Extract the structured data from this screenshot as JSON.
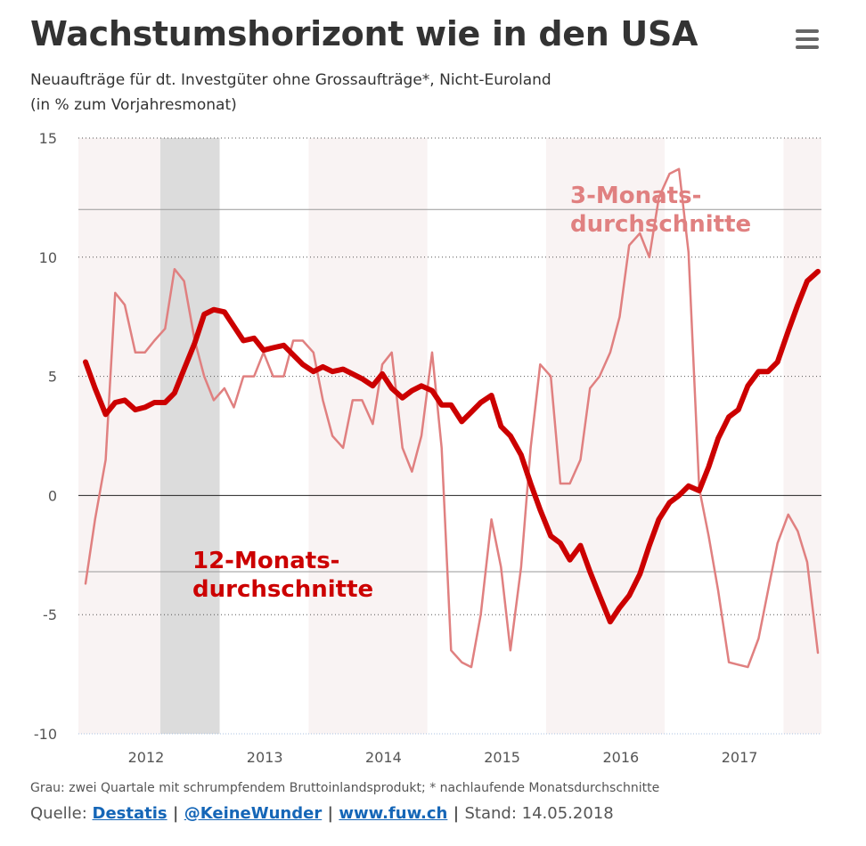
{
  "header": {
    "title": "Wachstumshorizont wie in den USA",
    "subtitle_line1": "Neuaufträge für dt. Investgüter ohne Grossaufträge*, Nicht-Euroland",
    "subtitle_line2": "(in % zum Vorjahresmonat)"
  },
  "menu": {
    "icon": "hamburger-menu-icon"
  },
  "footer": {
    "note": "Grau: zwei Quartale mit schrumpfendem Bruttoinlandsprodukt; * nachlaufende Monatsdurchschnitte",
    "source_prefix": "Quelle: ",
    "links": [
      "Destatis",
      "@KeineWunder",
      "www.fuw.ch"
    ],
    "separator": " | ",
    "stand": "Stand: 14.05.2018"
  },
  "colors": {
    "series_12m": "#cc0000",
    "series_3m": "#e08080",
    "recession_band": "#dcdcdc",
    "alt_band": "#f9f3f3",
    "link": "#1566b7"
  },
  "chart_data": {
    "type": "line",
    "ylim": [
      -10,
      15
    ],
    "yticks": [
      -10,
      -5,
      0,
      5,
      10,
      15
    ],
    "xlim": [
      2011.44,
      2017.7
    ],
    "xticks": [
      2012,
      2013,
      2014,
      2015,
      2016,
      2017
    ],
    "grid": "dotted",
    "reference_lines": [
      12,
      0,
      -3.2
    ],
    "recession_shading": [
      [
        2012.13,
        2012.63
      ]
    ],
    "alternating_year_bands": [
      [
        2011.44,
        2012.13
      ],
      [
        2013.38,
        2014.38
      ],
      [
        2015.38,
        2016.38
      ],
      [
        2017.38,
        2017.7
      ]
    ],
    "annotations": [
      {
        "text_line1": "3-Monats-",
        "text_line2": "durchschnitte",
        "series": "3m"
      },
      {
        "text_line1": "12-Monats-",
        "text_line2": "durchschnitte",
        "series": "12m"
      }
    ],
    "series": [
      {
        "key": "12m",
        "x": [
          2011.5,
          2011.58,
          2011.67,
          2011.75,
          2011.83,
          2011.92,
          2012.0,
          2012.08,
          2012.17,
          2012.25,
          2012.33,
          2012.42,
          2012.5,
          2012.58,
          2012.67,
          2012.75,
          2012.83,
          2012.92,
          2013.0,
          2013.08,
          2013.17,
          2013.25,
          2013.33,
          2013.42,
          2013.5,
          2013.58,
          2013.67,
          2013.75,
          2013.83,
          2013.92,
          2014.0,
          2014.08,
          2014.17,
          2014.25,
          2014.33,
          2014.42,
          2014.5,
          2014.58,
          2014.67,
          2014.75,
          2014.83,
          2014.92,
          2015.0,
          2015.08,
          2015.17,
          2015.25,
          2015.33,
          2015.42,
          2015.5,
          2015.58,
          2015.67,
          2015.75,
          2015.83,
          2015.92,
          2016.0,
          2016.08,
          2016.17,
          2016.25,
          2016.33,
          2016.42,
          2016.5,
          2016.58,
          2016.67,
          2016.75,
          2016.83,
          2016.92,
          2017.0,
          2017.08,
          2017.17,
          2017.25,
          2017.33,
          2017.42,
          2017.5,
          2017.58,
          2017.67
        ],
        "values": [
          5.6,
          4.5,
          3.4,
          3.9,
          4.0,
          3.6,
          3.7,
          3.9,
          3.9,
          4.3,
          5.3,
          6.4,
          7.6,
          7.8,
          7.7,
          7.1,
          6.5,
          6.6,
          6.1,
          6.2,
          6.3,
          5.9,
          5.5,
          5.2,
          5.4,
          5.2,
          5.3,
          5.1,
          4.9,
          4.6,
          5.1,
          4.5,
          4.1,
          4.4,
          4.6,
          4.4,
          3.8,
          3.8,
          3.1,
          3.5,
          3.9,
          4.2,
          2.9,
          2.5,
          1.7,
          0.5,
          -0.6,
          -1.7,
          -2.0,
          -2.7,
          -2.1,
          -3.2,
          -4.2,
          -5.3,
          -4.7,
          -4.2,
          -3.3,
          -2.1,
          -1.0,
          -0.3,
          0.0,
          0.4,
          0.2,
          1.2,
          2.4,
          3.3,
          3.6,
          4.6,
          5.2,
          5.2,
          5.6,
          6.9,
          8.0,
          9.0,
          9.4
        ]
      },
      {
        "key": "3m",
        "x": [
          2011.5,
          2011.58,
          2011.67,
          2011.75,
          2011.83,
          2011.92,
          2012.0,
          2012.08,
          2012.17,
          2012.25,
          2012.33,
          2012.42,
          2012.5,
          2012.58,
          2012.67,
          2012.75,
          2012.83,
          2012.92,
          2013.0,
          2013.08,
          2013.17,
          2013.25,
          2013.33,
          2013.42,
          2013.5,
          2013.58,
          2013.67,
          2013.75,
          2013.83,
          2013.92,
          2014.0,
          2014.08,
          2014.17,
          2014.25,
          2014.33,
          2014.42,
          2014.5,
          2014.58,
          2014.67,
          2014.75,
          2014.83,
          2014.92,
          2015.0,
          2015.08,
          2015.17,
          2015.25,
          2015.33,
          2015.42,
          2015.5,
          2015.58,
          2015.67,
          2015.75,
          2015.83,
          2015.92,
          2016.0,
          2016.08,
          2016.17,
          2016.25,
          2016.33,
          2016.42,
          2016.5,
          2016.58,
          2016.67,
          2016.75,
          2016.83,
          2016.92,
          2017.0,
          2017.08,
          2017.17,
          2017.25,
          2017.33,
          2017.42,
          2017.5,
          2017.58,
          2017.67
        ],
        "values": [
          -3.7,
          -1.0,
          1.5,
          8.5,
          8.0,
          6.0,
          6.0,
          6.5,
          7.0,
          9.5,
          9.0,
          6.5,
          5.0,
          4.0,
          4.5,
          3.7,
          5.0,
          5.0,
          6.0,
          5.0,
          5.0,
          6.5,
          6.5,
          6.0,
          4.0,
          2.5,
          2.0,
          4.0,
          4.0,
          3.0,
          5.5,
          6.0,
          2.0,
          1.0,
          2.5,
          6.0,
          2.0,
          -6.5,
          -7.0,
          -7.2,
          -5.0,
          -1.0,
          -3.0,
          -6.5,
          -3.0,
          2.0,
          5.5,
          5.0,
          0.5,
          0.5,
          1.5,
          4.5,
          5.0,
          6.0,
          7.5,
          10.5,
          11.0,
          10.0,
          12.5,
          13.5,
          13.7,
          10.2,
          0.3,
          -1.7,
          -4.0,
          -7.0,
          -7.1,
          -7.2,
          -6.0,
          -4.0,
          -2.0,
          -0.8,
          -1.5,
          -2.8,
          -6.6
        ]
      }
    ]
  }
}
